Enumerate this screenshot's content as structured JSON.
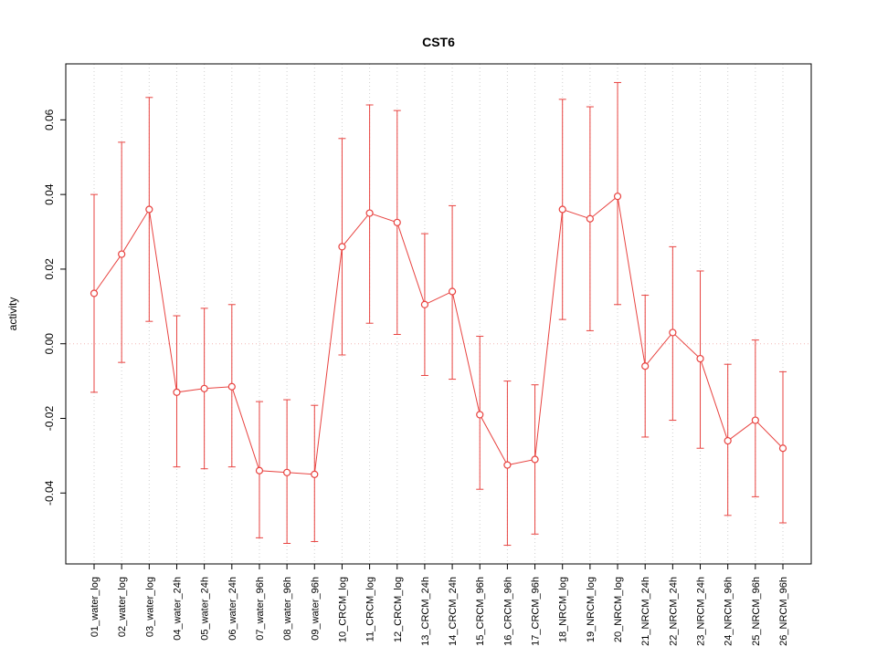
{
  "chart_data": {
    "type": "scatter",
    "title": "CST6",
    "xlabel": "",
    "ylabel": "activity",
    "ylim": [
      -0.059,
      0.075
    ],
    "yticks": [
      -0.04,
      -0.02,
      0.0,
      0.02,
      0.04,
      0.06
    ],
    "grid": "vertical dotted gridline at each category; horizontal dotted line at y=0",
    "legend": "none",
    "series_name": "CST6 activity with error bars",
    "series_color": "#e84340",
    "zero_line_color": "#f3b7b5",
    "grid_color": "#cfcfcf",
    "box_color": "#000000",
    "categories": [
      "01_water_log",
      "02_water_log",
      "03_water_log",
      "04_water_24h",
      "05_water_24h",
      "06_water_24h",
      "07_water_96h",
      "08_water_96h",
      "09_water_96h",
      "10_CRCM_log",
      "11_CRCM_log",
      "12_CRCM_log",
      "13_CRCM_24h",
      "14_CRCM_24h",
      "15_CRCM_96h",
      "16_CRCM_96h",
      "17_CRCM_96h",
      "18_NRCM_log",
      "19_NRCM_log",
      "20_NRCM_log",
      "21_NRCM_24h",
      "22_NRCM_24h",
      "23_NRCM_24h",
      "24_NRCM_96h",
      "25_NRCM_96h",
      "26_NRCM_96h"
    ],
    "values": [
      0.0135,
      0.024,
      0.036,
      -0.013,
      -0.012,
      -0.0115,
      -0.034,
      -0.0345,
      -0.035,
      0.026,
      0.035,
      0.0325,
      0.0105,
      0.014,
      -0.019,
      -0.0325,
      -0.031,
      0.036,
      0.0335,
      0.0395,
      -0.006,
      0.003,
      -0.004,
      -0.026,
      -0.0205,
      -0.028
    ],
    "err_low": [
      -0.013,
      -0.005,
      0.006,
      -0.033,
      -0.0335,
      -0.033,
      -0.052,
      -0.0535,
      -0.053,
      -0.003,
      0.0055,
      0.0025,
      -0.0085,
      -0.0095,
      -0.039,
      -0.054,
      -0.051,
      0.0065,
      0.0035,
      0.0105,
      -0.025,
      -0.0205,
      -0.028,
      -0.046,
      -0.041,
      -0.048
    ],
    "err_high": [
      0.04,
      0.054,
      0.066,
      0.0075,
      0.0095,
      0.0105,
      -0.0155,
      -0.015,
      -0.0165,
      0.055,
      0.064,
      0.0625,
      0.0295,
      0.037,
      0.002,
      -0.01,
      -0.011,
      0.0655,
      0.0635,
      0.07,
      0.013,
      0.026,
      0.0195,
      -0.0055,
      0.001,
      -0.0075
    ]
  }
}
